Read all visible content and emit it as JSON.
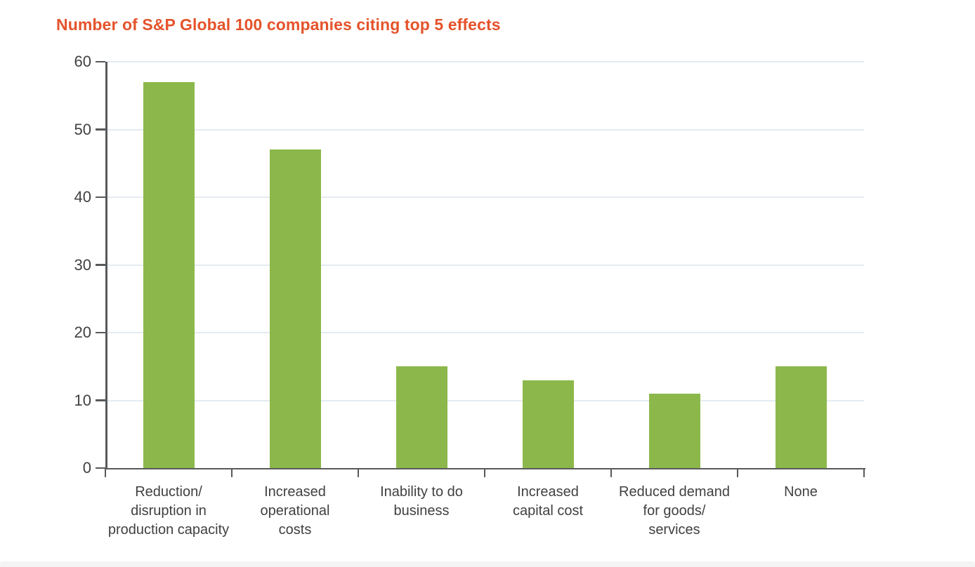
{
  "page": {
    "background_color": "#ffffff",
    "footer_strip_color": "#f4f4f4"
  },
  "chart_data": {
    "type": "bar",
    "title": "Number of S&P Global 100 companies citing top 5 effects",
    "categories": [
      "Reduction/\ndisruption in\nproduction capacity",
      "Increased\noperational\ncosts",
      "Inability to do\nbusiness",
      "Increased\ncapital cost",
      "Reduced demand\nfor goods/\nservices",
      "None"
    ],
    "values": [
      57,
      47,
      15,
      13,
      11,
      15
    ],
    "xlabel": "",
    "ylabel": "",
    "ylim": [
      0,
      60
    ],
    "yticks": [
      0,
      10,
      20,
      30,
      40,
      50,
      60
    ],
    "grid": true,
    "legend": false,
    "colors": {
      "title": "#e4532b",
      "bar": "#8cb84b",
      "gridline": "#e4ebf1",
      "axis": "#58595b",
      "tick_label": "#414042"
    }
  }
}
